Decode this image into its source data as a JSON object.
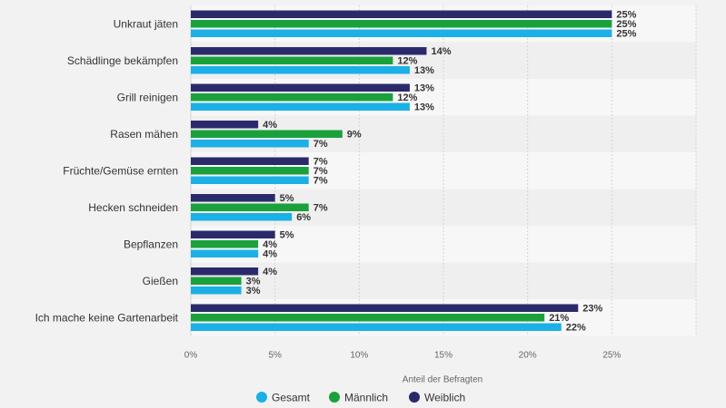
{
  "chart_data": {
    "type": "bar",
    "orientation": "horizontal",
    "categories": [
      "Unkraut jäten",
      "Schädlinge bekämpfen",
      "Grill reinigen",
      "Rasen mähen",
      "Früchte/Gemüse ernten",
      "Hecken schneiden",
      "Bepflanzen",
      "Gießen",
      "Ich mache keine Gartenarbeit"
    ],
    "series": [
      {
        "name": "Weiblich",
        "color": "#2a2a6b",
        "values": [
          25,
          14,
          13,
          4,
          7,
          5,
          5,
          4,
          23
        ]
      },
      {
        "name": "Männlich",
        "color": "#1aa13c",
        "values": [
          25,
          12,
          12,
          9,
          7,
          7,
          4,
          3,
          21
        ]
      },
      {
        "name": "Gesamt",
        "color": "#1bb0e6",
        "values": [
          25,
          13,
          13,
          7,
          7,
          6,
          4,
          3,
          22
        ]
      }
    ],
    "legend_order": [
      "Gesamt",
      "Männlich",
      "Weiblich"
    ],
    "value_suffix": "%",
    "xlim": [
      0,
      30
    ],
    "xticks": [
      0,
      5,
      10,
      15,
      20,
      25
    ],
    "xtick_labels": [
      "0%",
      "5%",
      "10%",
      "15%",
      "20%",
      "25%"
    ],
    "xlabel": "Anteil der Befragten",
    "legend_position": "bottom-center",
    "grid": true
  }
}
